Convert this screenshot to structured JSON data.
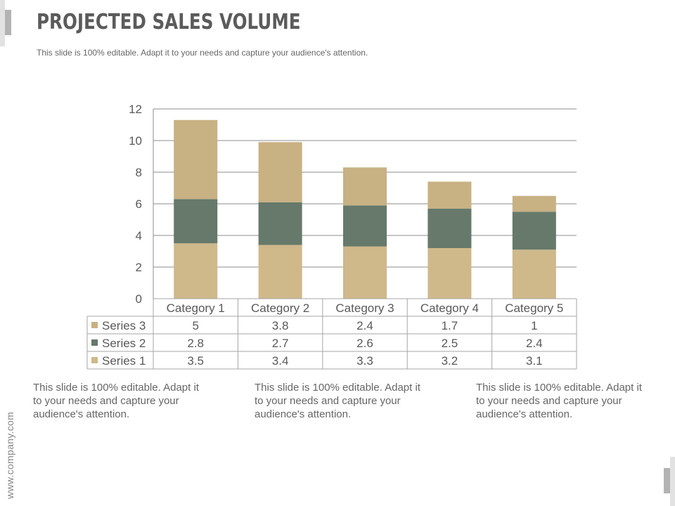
{
  "slide": {
    "title": "PROJECTED SALES VOLUME",
    "subtitle": "This slide is 100% editable. Adapt it to your needs and capture your audience's attention.",
    "paragraphs": [
      "This slide is 100% editable. Adapt it to your needs and capture your audience's attention.",
      "This slide is 100% editable. Adapt it to your needs and capture your audience's attention.",
      "This slide is 100% editable. Adapt it to your needs and capture your audience's attention."
    ],
    "url": "www.company.com"
  },
  "chart_data": {
    "type": "bar",
    "stacked": true,
    "categories": [
      "Category 1",
      "Category 2",
      "Category 3",
      "Category 4",
      "Category 5"
    ],
    "series": [
      {
        "name": "Series 1",
        "values": [
          3.5,
          3.4,
          3.3,
          3.2,
          3.1
        ],
        "color": "#cfb88a"
      },
      {
        "name": "Series 2",
        "values": [
          2.8,
          2.7,
          2.6,
          2.5,
          2.4
        ],
        "color": "#66796a"
      },
      {
        "name": "Series 3",
        "values": [
          5,
          3.8,
          2.4,
          1.7,
          1
        ],
        "color": "#c8b183"
      }
    ],
    "table_rows": [
      "Series 3",
      "Series 2",
      "Series 1"
    ],
    "yticks": [
      0,
      2,
      4,
      6,
      8,
      10,
      12
    ],
    "ylim": [
      0,
      12
    ],
    "grid": true,
    "colors": {
      "grid": "#8c8c8c",
      "table_border": "#a6a6a6"
    }
  }
}
